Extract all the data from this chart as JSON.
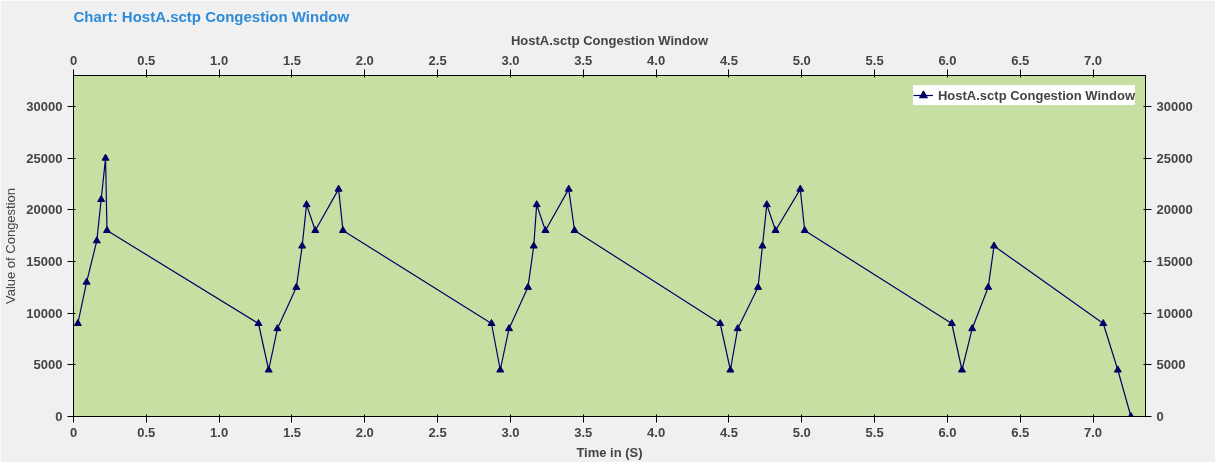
{
  "chart_data": {
    "type": "line",
    "title": "Chart:  HostA.sctp Congestion Window",
    "x2label": "HostA.sctp Congestion Window",
    "xlabel": "Time in (S)",
    "ylabel": "Value of Congestion",
    "x": [
      0.03,
      0.09,
      0.16,
      0.19,
      0.22,
      0.23,
      1.27,
      1.34,
      1.4,
      1.53,
      1.57,
      1.6,
      1.66,
      1.82,
      1.85,
      2.87,
      2.93,
      2.99,
      3.12,
      3.16,
      3.18,
      3.24,
      3.4,
      3.44,
      4.44,
      4.51,
      4.56,
      4.7,
      4.73,
      4.76,
      4.82,
      4.99,
      5.02,
      6.03,
      6.1,
      6.17,
      6.28,
      6.32,
      7.07,
      7.17,
      7.26
    ],
    "series": [
      {
        "name": "HostA.sctp Congestion Window",
        "color": "#000066",
        "values": [
          9000,
          13000,
          17000,
          21000,
          25000,
          18000,
          9000,
          4500,
          8500,
          12500,
          16500,
          20500,
          18000,
          22000,
          18000,
          9000,
          4500,
          8500,
          12500,
          16500,
          20500,
          18000,
          22000,
          18000,
          9000,
          4500,
          8500,
          12500,
          16500,
          20500,
          18000,
          22000,
          18000,
          9000,
          4500,
          8500,
          12500,
          16500,
          9000,
          4500,
          0
        ]
      }
    ],
    "xlim": [
      0,
      7.36
    ],
    "xticks": [
      {
        "value": 0,
        "label": "0"
      },
      {
        "value": 0.5,
        "label": "0.5"
      },
      {
        "value": 1,
        "label": "1.0"
      },
      {
        "value": 1.5,
        "label": "1.5"
      },
      {
        "value": 2,
        "label": "2.0"
      },
      {
        "value": 2.5,
        "label": "2.5"
      },
      {
        "value": 3,
        "label": "3.0"
      },
      {
        "value": 3.5,
        "label": "3.5"
      },
      {
        "value": 4,
        "label": "4.0"
      },
      {
        "value": 4.5,
        "label": "4.5"
      },
      {
        "value": 5,
        "label": "5.0"
      },
      {
        "value": 5.5,
        "label": "5.5"
      },
      {
        "value": 6,
        "label": "6.0"
      },
      {
        "value": 6.5,
        "label": "6.5"
      },
      {
        "value": 7,
        "label": "7.0"
      }
    ],
    "x2lim": [
      0,
      7.36
    ],
    "x2ticks": [
      {
        "value": 0,
        "label": "0"
      },
      {
        "value": 0.5,
        "label": "0.5"
      },
      {
        "value": 1,
        "label": "1.0"
      },
      {
        "value": 1.5,
        "label": "1.5"
      },
      {
        "value": 2,
        "label": "2.0"
      },
      {
        "value": 2.5,
        "label": "2.5"
      },
      {
        "value": 3,
        "label": "3.0"
      },
      {
        "value": 3.5,
        "label": "3.5"
      },
      {
        "value": 4,
        "label": "4.0"
      },
      {
        "value": 4.5,
        "label": "4.5"
      },
      {
        "value": 5,
        "label": "5.0"
      },
      {
        "value": 5.5,
        "label": "5.5"
      },
      {
        "value": 6,
        "label": "6.0"
      },
      {
        "value": 6.5,
        "label": "6.5"
      },
      {
        "value": 7,
        "label": "7.0"
      }
    ],
    "ylim": [
      0,
      33000
    ],
    "yticks": [
      0,
      5000,
      10000,
      15000,
      20000,
      25000,
      30000
    ],
    "y2lim": [
      0,
      33000
    ],
    "y2ticks": [
      0,
      5000,
      10000,
      15000,
      20000,
      25000,
      30000
    ],
    "legend": "top right",
    "marker": "triangle",
    "line_style": "solid",
    "grid": false
  }
}
